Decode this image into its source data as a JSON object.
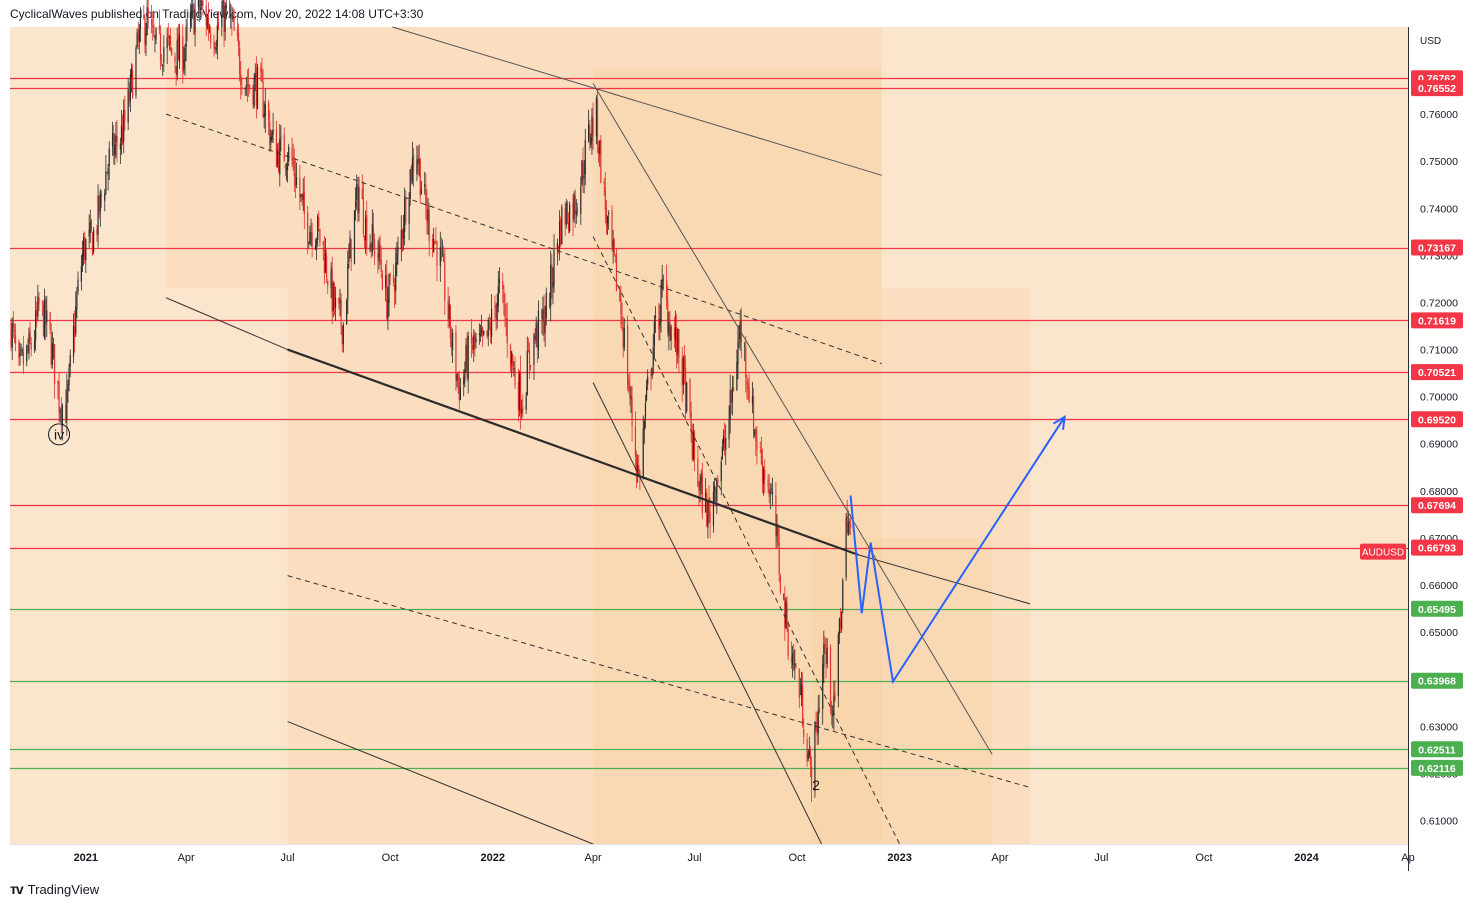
{
  "header": {
    "publisher": "CyclicalWaves",
    "published_text": "published on",
    "site": "TradingView.com",
    "datetime": "Nov 20, 2022 14:08 UTC+3:30"
  },
  "footer": {
    "brand": "TradingView",
    "logo_icon": "tradingview-logo-icon"
  },
  "chart_data": {
    "type": "candlestick",
    "symbol": "AUDUSD",
    "currency": "USD",
    "ylim": [
      0.605,
      0.7785
    ],
    "y_ticks": [
      "0.76000",
      "0.75000",
      "0.74000",
      "0.73000",
      "0.72000",
      "0.71000",
      "0.70000",
      "0.69000",
      "0.68000",
      "0.67000",
      "0.66000",
      "0.65000",
      "0.64000",
      "0.63000",
      "0.62000",
      "0.61000"
    ],
    "x_ticks": [
      {
        "label": "2021",
        "date": "2021-01-01"
      },
      {
        "label": "Apr",
        "date": "2021-04-01"
      },
      {
        "label": "Jul",
        "date": "2021-07-01"
      },
      {
        "label": "Oct",
        "date": "2021-10-01"
      },
      {
        "label": "2022",
        "date": "2022-01-01"
      },
      {
        "label": "Apr",
        "date": "2022-04-01"
      },
      {
        "label": "Jul",
        "date": "2022-07-01"
      },
      {
        "label": "Oct",
        "date": "2022-10-01"
      },
      {
        "label": "2023",
        "date": "2023-01-01"
      },
      {
        "label": "Apr",
        "date": "2023-04-01"
      },
      {
        "label": "Jul",
        "date": "2023-07-01"
      },
      {
        "label": "Oct",
        "date": "2023-10-01"
      },
      {
        "label": "2024",
        "date": "2024-01-01"
      },
      {
        "label": "Ap",
        "date": "2024-04-01"
      }
    ],
    "x_start": "2020-10-25",
    "x_end": "2024-04-01",
    "price_tag": {
      "label": "AUDUSD",
      "value": 0.66793
    },
    "levels": [
      {
        "value": 0.76762,
        "label": "0.76762",
        "color": "#f23645"
      },
      {
        "value": 0.76552,
        "label": "0.76552",
        "color": "#f23645"
      },
      {
        "value": 0.73167,
        "label": "0.73167",
        "color": "#f23645"
      },
      {
        "value": 0.71619,
        "label": "0.71619",
        "color": "#f23645"
      },
      {
        "value": 0.70521,
        "label": "0.70521",
        "color": "#f23645"
      },
      {
        "value": 0.6952,
        "label": "0.69520",
        "color": "#f23645"
      },
      {
        "value": 0.67694,
        "label": "0.67694",
        "color": "#f23645"
      },
      {
        "value": 0.66793,
        "label": "0.66793",
        "color": "#f23645"
      },
      {
        "value": 0.65495,
        "label": "0.65495",
        "color": "#4caf50"
      },
      {
        "value": 0.63968,
        "label": "0.63968",
        "color": "#4caf50"
      },
      {
        "value": 0.62511,
        "label": "0.62511",
        "color": "#4caf50"
      },
      {
        "value": 0.62116,
        "label": "0.62116",
        "color": "#4caf50"
      }
    ],
    "anchors": [
      {
        "date": "2020-10-26",
        "value": 0.715
      },
      {
        "date": "2020-11-02",
        "value": 0.702
      },
      {
        "date": "2020-11-20",
        "value": 0.72
      },
      {
        "date": "2020-12-08",
        "value": 0.701
      },
      {
        "date": "2020-12-15",
        "value": 0.7
      },
      {
        "date": "2020-12-30",
        "value": 0.73
      },
      {
        "date": "2021-01-25",
        "value": 0.75
      },
      {
        "date": "2021-02-25",
        "value": 0.78
      },
      {
        "date": "2021-03-20",
        "value": 0.77
      },
      {
        "date": "2021-04-05",
        "value": 0.78
      },
      {
        "date": "2021-05-05",
        "value": 0.78
      },
      {
        "date": "2021-06-20",
        "value": 0.755
      },
      {
        "date": "2021-07-10",
        "value": 0.745
      },
      {
        "date": "2021-08-08",
        "value": 0.725
      },
      {
        "date": "2021-08-20",
        "value": 0.715
      },
      {
        "date": "2021-09-03",
        "value": 0.745
      },
      {
        "date": "2021-09-28",
        "value": 0.72
      },
      {
        "date": "2021-10-25",
        "value": 0.752
      },
      {
        "date": "2021-11-20",
        "value": 0.72
      },
      {
        "date": "2021-12-03",
        "value": 0.703
      },
      {
        "date": "2022-01-07",
        "value": 0.72
      },
      {
        "date": "2022-01-28",
        "value": 0.7
      },
      {
        "date": "2022-03-04",
        "value": 0.735
      },
      {
        "date": "2022-04-04",
        "value": 0.758
      },
      {
        "date": "2022-05-12",
        "value": 0.685
      },
      {
        "date": "2022-06-03",
        "value": 0.725
      },
      {
        "date": "2022-07-14",
        "value": 0.672
      },
      {
        "date": "2022-08-11",
        "value": 0.712
      },
      {
        "date": "2022-09-05",
        "value": 0.68
      },
      {
        "date": "2022-10-13",
        "value": 0.62
      },
      {
        "date": "2022-10-25",
        "value": 0.647
      },
      {
        "date": "2022-11-03",
        "value": 0.63
      },
      {
        "date": "2022-11-15",
        "value": 0.678
      },
      {
        "date": "2022-11-18",
        "value": 0.672
      }
    ],
    "channels": [
      {
        "name": "upper-channel-top",
        "style": "solid",
        "color": "#555555",
        "width": 1,
        "x1": "2021-10-03",
        "y1": 0.7785,
        "x2": "2022-12-16",
        "y2": 0.747
      },
      {
        "name": "upper-channel-mid",
        "style": "dashed",
        "color": "#333333",
        "width": 1,
        "x1": "2021-03-14",
        "y1": 0.76,
        "x2": "2022-12-16",
        "y2": 0.707
      },
      {
        "name": "upper-channel-bottom",
        "style": "solid",
        "color": "#333333",
        "width": 1,
        "x1": "2021-03-14",
        "y1": 0.721,
        "x2": "2021-07-01",
        "y2": 0.71
      },
      {
        "name": "median-trend-line",
        "style": "solid",
        "color": "#2b2b2b",
        "width": 2.2,
        "x1": "2021-07-01",
        "y1": 0.71,
        "x2": "2022-11-25",
        "y2": 0.6664
      },
      {
        "name": "extended-trend-line",
        "style": "solid",
        "color": "#333333",
        "width": 1,
        "x1": "2022-11-25",
        "y1": 0.6664,
        "x2": "2023-04-28",
        "y2": 0.656
      },
      {
        "name": "lower-channel-mid",
        "style": "dashed",
        "color": "#333333",
        "width": 1,
        "x1": "2021-07-01",
        "y1": 0.662,
        "x2": "2023-04-28",
        "y2": 0.617
      },
      {
        "name": "lower-channel-bottom",
        "style": "solid",
        "color": "#333333",
        "width": 1,
        "x1": "2021-07-01",
        "y1": 0.631,
        "x2": "2022-04-01",
        "y2": 0.605
      },
      {
        "name": "steep-channel-top",
        "style": "solid",
        "color": "#555555",
        "width": 1,
        "x1": "2022-04-01",
        "y1": 0.7665,
        "x2": "2023-03-25",
        "y2": 0.624
      },
      {
        "name": "steep-channel-mid",
        "style": "dashed",
        "color": "#333333",
        "width": 1,
        "x1": "2022-04-01",
        "y1": 0.734,
        "x2": "2023-01-01",
        "y2": 0.605
      },
      {
        "name": "steep-channel-bottom",
        "style": "solid",
        "color": "#333333",
        "width": 1,
        "x1": "2022-04-01",
        "y1": 0.703,
        "x2": "2022-10-23",
        "y2": 0.605
      }
    ],
    "shaded_regions": [
      {
        "x1": "2021-03-14",
        "x2": "2022-12-16",
        "y1": 0.7785,
        "y2": 0.723
      },
      {
        "x1": "2021-07-01",
        "x2": "2023-04-28",
        "y1": 0.723,
        "y2": 0.605
      },
      {
        "x1": "2022-04-01",
        "x2": "2022-12-16",
        "y1": 0.77,
        "y2": 0.605
      },
      {
        "x1": "2022-10-15",
        "x2": "2023-03-25",
        "y1": 0.67,
        "y2": 0.605
      }
    ],
    "projection": {
      "color": "#2962ff",
      "points": [
        {
          "date": "2022-11-18",
          "value": 0.679
        },
        {
          "date": "2022-11-28",
          "value": 0.654
        },
        {
          "date": "2022-12-06",
          "value": 0.669
        },
        {
          "date": "2022-12-26",
          "value": 0.6395
        },
        {
          "date": "2023-05-29",
          "value": 0.6957
        }
      ]
    },
    "wave_labels": [
      {
        "label": "iv",
        "date": "2020-12-08",
        "value": 0.692,
        "circled": true
      },
      {
        "label": "2",
        "date": "2022-10-18",
        "value": 0.6175,
        "circled": false
      }
    ]
  }
}
